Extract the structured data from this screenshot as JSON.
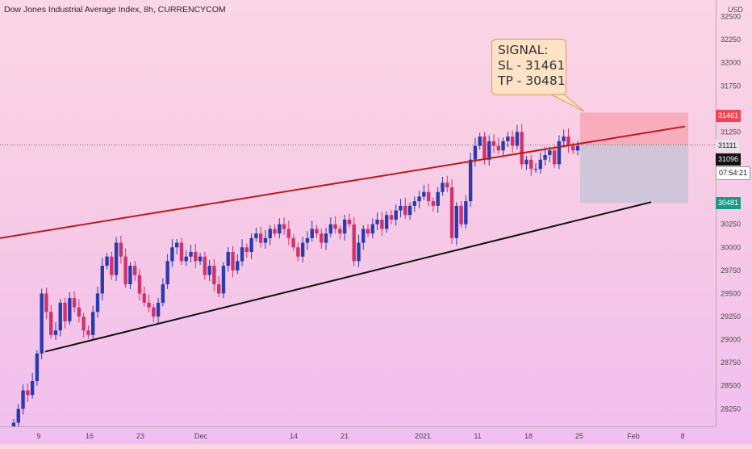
{
  "title": "Dow Jones Industrial Average Index, 8h, CURRENCYCOM",
  "currency": "USD",
  "signal": {
    "heading": "SIGNAL:",
    "sl": "SL - 31461",
    "tp": "TP - 30481"
  },
  "price_axis": {
    "ticks": [
      "32500",
      "32250",
      "32000",
      "31750",
      "31250",
      "30250",
      "30000",
      "29750",
      "29500",
      "29250",
      "29000",
      "28750",
      "28500",
      "28250"
    ]
  },
  "time_axis": {
    "ticks": [
      "9",
      "16",
      "23",
      "Dec",
      "14",
      "21",
      "2021",
      "11",
      "18",
      "25",
      "Feb",
      "8"
    ]
  },
  "price_tags": {
    "sl": "31461",
    "current": "31111",
    "last": "31096",
    "countdown": "07:54:21",
    "tp": "30481"
  },
  "colors": {
    "up": "#2a3ab0",
    "down": "#d0336b",
    "sl_zone": "#f8a0ae",
    "tp_zone": "#c9c4d8",
    "resistance": "#b71c1c",
    "support": "#111111"
  },
  "chart_data": {
    "type": "candlestick",
    "title": "Dow Jones Industrial Average Index, 8h, CURRENCYCOM",
    "y_unit": "USD",
    "ylim": [
      28060,
      32680
    ],
    "x_ticks": [
      "9",
      "16",
      "23",
      "Dec",
      "14",
      "21",
      "2021",
      "11",
      "18",
      "25",
      "Feb",
      "8"
    ],
    "close": [
      28100,
      28250,
      28450,
      28400,
      28550,
      28850,
      29500,
      29300,
      29050,
      29100,
      29400,
      29200,
      29450,
      29350,
      29250,
      29100,
      29050,
      29300,
      29500,
      29800,
      29900,
      29700,
      30050,
      29900,
      29600,
      29800,
      29700,
      29500,
      29400,
      29350,
      29250,
      29400,
      29600,
      29850,
      30000,
      30050,
      29850,
      29900,
      29950,
      29850,
      29900,
      29700,
      29800,
      29600,
      29500,
      29800,
      29950,
      29750,
      29850,
      30000,
      29950,
      30100,
      30150,
      30050,
      30100,
      30200,
      30150,
      30250,
      30200,
      30100,
      30000,
      29900,
      30050,
      30100,
      30200,
      30150,
      30050,
      30150,
      30250,
      30200,
      30150,
      30300,
      30250,
      29850,
      30050,
      30200,
      30150,
      30250,
      30300,
      30200,
      30350,
      30300,
      30400,
      30450,
      30350,
      30450,
      30500,
      30550,
      30600,
      30500,
      30450,
      30600,
      30700,
      30650,
      30100,
      30450,
      30250,
      30500,
      30950,
      31100,
      31200,
      30950,
      31150,
      31100,
      31050,
      31150,
      31200,
      31100,
      31250,
      30900,
      30950,
      30850,
      30850,
      30950,
      31000,
      31050,
      30900,
      31150,
      31200,
      31100,
      31050,
      31100
    ],
    "support_line": {
      "from": [
        "9",
        28870
      ],
      "to": [
        "Feb",
        30490
      ]
    },
    "resistance_line": {
      "from": [
        "start",
        30100
      ],
      "to": [
        "Feb",
        31310
      ]
    },
    "stop_loss": 31461,
    "take_profit": 30481,
    "entry": 31111
  }
}
